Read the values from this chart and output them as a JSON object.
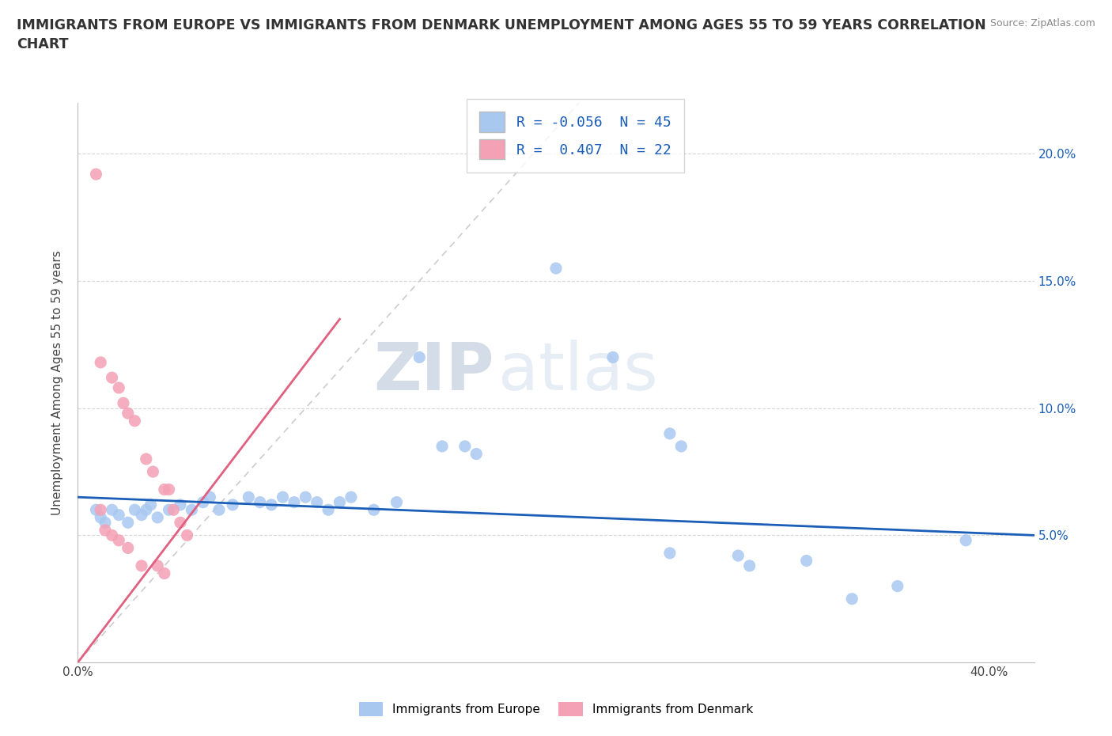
{
  "title": "IMMIGRANTS FROM EUROPE VS IMMIGRANTS FROM DENMARK UNEMPLOYMENT AMONG AGES 55 TO 59 YEARS CORRELATION\nCHART",
  "source": "Source: ZipAtlas.com",
  "ylabel": "Unemployment Among Ages 55 to 59 years",
  "xlim": [
    0.0,
    0.42
  ],
  "ylim": [
    0.0,
    0.22
  ],
  "x_tick_positions": [
    0.0,
    0.05,
    0.1,
    0.15,
    0.2,
    0.25,
    0.3,
    0.35,
    0.4
  ],
  "x_tick_labels": [
    "0.0%",
    "",
    "",
    "",
    "",
    "",
    "",
    "",
    "40.0%"
  ],
  "y_tick_positions": [
    0.0,
    0.05,
    0.1,
    0.15,
    0.2
  ],
  "y_tick_labels_right": [
    "",
    "5.0%",
    "10.0%",
    "15.0%",
    "20.0%"
  ],
  "watermark_zip": "ZIP",
  "watermark_atlas": "atlas",
  "europe_color": "#A8C8F0",
  "denmark_color": "#F4A0B5",
  "europe_line_color": "#1B5EB8",
  "denmark_line_color": "#E06080",
  "ref_line_color": "#CCCCCC",
  "R_europe": -0.056,
  "N_europe": 45,
  "R_denmark": 0.407,
  "N_denmark": 22,
  "europe_trend_x": [
    0.0,
    0.42
  ],
  "europe_trend_y": [
    0.065,
    0.05
  ],
  "denmark_trend_x": [
    0.0,
    0.115
  ],
  "denmark_trend_y": [
    0.0,
    0.135
  ],
  "ref_line_x": [
    0.0,
    0.22
  ],
  "ref_line_y": [
    0.0,
    0.22
  ],
  "europe_points": [
    [
      0.008,
      0.06
    ],
    [
      0.01,
      0.057
    ],
    [
      0.012,
      0.055
    ],
    [
      0.015,
      0.06
    ],
    [
      0.018,
      0.058
    ],
    [
      0.022,
      0.055
    ],
    [
      0.025,
      0.06
    ],
    [
      0.028,
      0.058
    ],
    [
      0.03,
      0.06
    ],
    [
      0.032,
      0.062
    ],
    [
      0.035,
      0.057
    ],
    [
      0.04,
      0.06
    ],
    [
      0.045,
      0.062
    ],
    [
      0.05,
      0.06
    ],
    [
      0.055,
      0.063
    ],
    [
      0.058,
      0.065
    ],
    [
      0.062,
      0.06
    ],
    [
      0.068,
      0.062
    ],
    [
      0.075,
      0.065
    ],
    [
      0.08,
      0.063
    ],
    [
      0.085,
      0.062
    ],
    [
      0.09,
      0.065
    ],
    [
      0.095,
      0.063
    ],
    [
      0.1,
      0.065
    ],
    [
      0.105,
      0.063
    ],
    [
      0.11,
      0.06
    ],
    [
      0.115,
      0.063
    ],
    [
      0.12,
      0.065
    ],
    [
      0.13,
      0.06
    ],
    [
      0.14,
      0.063
    ],
    [
      0.15,
      0.12
    ],
    [
      0.16,
      0.085
    ],
    [
      0.17,
      0.085
    ],
    [
      0.175,
      0.082
    ],
    [
      0.21,
      0.155
    ],
    [
      0.235,
      0.12
    ],
    [
      0.26,
      0.09
    ],
    [
      0.265,
      0.085
    ],
    [
      0.26,
      0.043
    ],
    [
      0.29,
      0.042
    ],
    [
      0.295,
      0.038
    ],
    [
      0.32,
      0.04
    ],
    [
      0.34,
      0.025
    ],
    [
      0.36,
      0.03
    ],
    [
      0.39,
      0.048
    ]
  ],
  "denmark_points": [
    [
      0.008,
      0.192
    ],
    [
      0.01,
      0.118
    ],
    [
      0.015,
      0.112
    ],
    [
      0.018,
      0.108
    ],
    [
      0.02,
      0.102
    ],
    [
      0.022,
      0.098
    ],
    [
      0.025,
      0.095
    ],
    [
      0.03,
      0.08
    ],
    [
      0.033,
      0.075
    ],
    [
      0.038,
      0.068
    ],
    [
      0.04,
      0.068
    ],
    [
      0.042,
      0.06
    ],
    [
      0.045,
      0.055
    ],
    [
      0.048,
      0.05
    ],
    [
      0.01,
      0.06
    ],
    [
      0.012,
      0.052
    ],
    [
      0.015,
      0.05
    ],
    [
      0.018,
      0.048
    ],
    [
      0.022,
      0.045
    ],
    [
      0.028,
      0.038
    ],
    [
      0.035,
      0.038
    ],
    [
      0.038,
      0.035
    ]
  ]
}
